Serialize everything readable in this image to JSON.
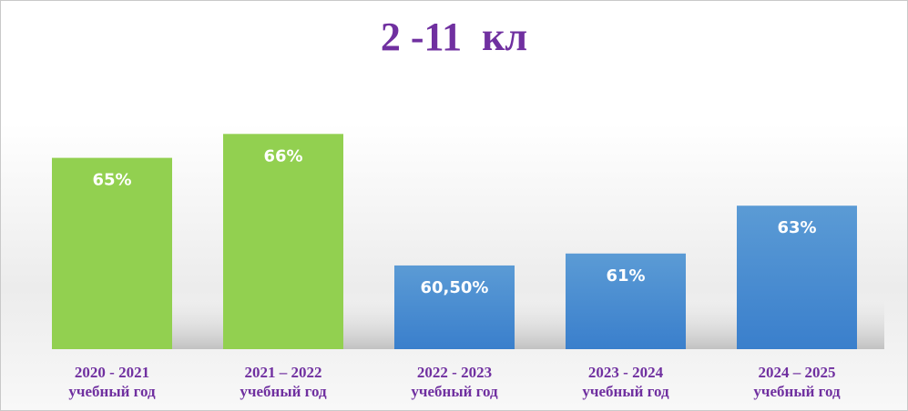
{
  "chart_data": {
    "type": "bar",
    "title": "2 -11  кл",
    "categories": [
      [
        "2020 - 2021",
        "учебный год"
      ],
      [
        "2021 – 2022",
        "учебный год"
      ],
      [
        "2022 - 2023",
        "учебный год"
      ],
      [
        "2023 - 2024",
        "учебный год"
      ],
      [
        "2024 – 2025",
        "учебный год"
      ]
    ],
    "values": [
      65,
      66,
      60.5,
      61,
      63
    ],
    "data_labels": [
      "65%",
      "66%",
      "60,50%",
      "61%",
      "63%"
    ],
    "ylim": [
      57,
      67
    ],
    "grid": false,
    "legend": "none",
    "colors": {
      "green_top": "#92d050",
      "green_bottom": "#92d050",
      "blue_top": "#5b9bd5",
      "blue_bottom": "#3a7fcc",
      "title": "#7030a0",
      "category_text": "#7030a0"
    },
    "bar_colors": [
      "green",
      "green",
      "blue",
      "blue",
      "blue"
    ]
  }
}
